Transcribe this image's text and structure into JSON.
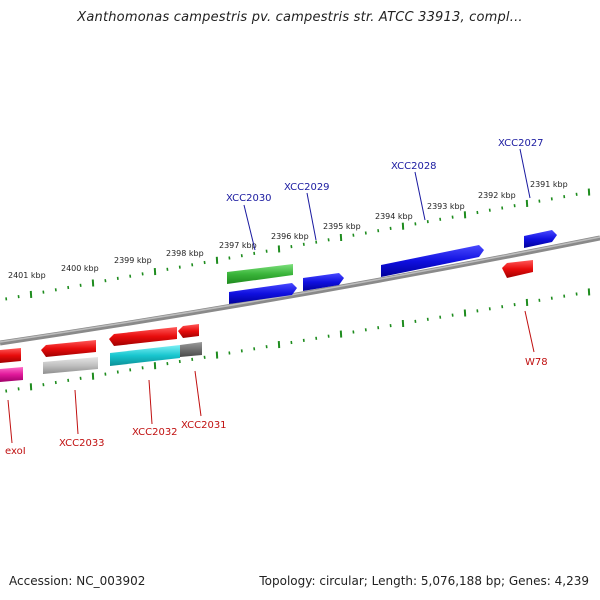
{
  "title": "Xanthomonas campestris pv. campestris str. ATCC 33913, compl...",
  "footer": {
    "accession": "Accession: NC_003902",
    "summary": "Topology: circular; Length: 5,076,188 bp; Genes: 4,239"
  },
  "colors": {
    "forward_strand": "#1010e0",
    "reverse_strand": "#e80c0c",
    "highlight_green": "#3ab53a",
    "cyan": "#18c6cf",
    "gray": "#c0c0c0",
    "dark_gray": "#707070",
    "magenta": "#e0189a",
    "tick": "#1e8c1e",
    "backbone": "#8a8a8a"
  },
  "ticks": [
    {
      "label": "2401 kbp"
    },
    {
      "label": "2400 kbp"
    },
    {
      "label": "2399 kbp"
    },
    {
      "label": "2398 kbp"
    },
    {
      "label": "2397 kbp"
    },
    {
      "label": "2396 kbp"
    },
    {
      "label": "2395 kbp"
    },
    {
      "label": "2394 kbp"
    },
    {
      "label": "2393 kbp"
    },
    {
      "label": "2392 kbp"
    },
    {
      "label": "2391 kbp"
    }
  ],
  "genes": [
    {
      "label": "XCC2030",
      "strand": "forward"
    },
    {
      "label": "XCC2029",
      "strand": "forward"
    },
    {
      "label": "XCC2028",
      "strand": "forward"
    },
    {
      "label": "XCC2027",
      "strand": "forward"
    },
    {
      "label": "W78",
      "strand": "reverse"
    },
    {
      "label": "XCC2031",
      "strand": "reverse"
    },
    {
      "label": "XCC2032",
      "strand": "reverse"
    },
    {
      "label": "XCC2033",
      "strand": "reverse"
    },
    {
      "label": "exoI",
      "strand": "reverse"
    }
  ]
}
